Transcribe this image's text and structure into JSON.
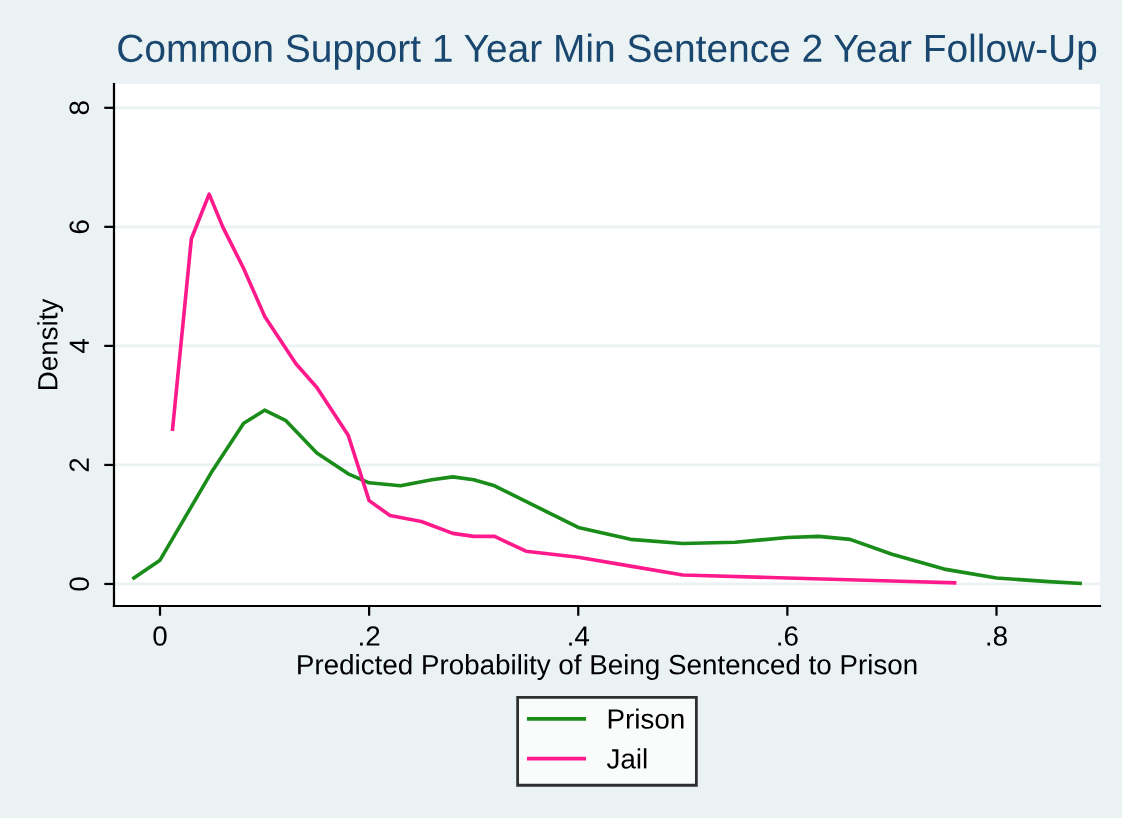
{
  "chart_data": {
    "type": "line",
    "title": "Common Support 1 Year Min Sentence 2 Year Follow-Up",
    "xlabel": "Predicted Probability of Being Sentenced to Prison",
    "ylabel": "Density",
    "xlim": [
      -0.044,
      0.899
    ],
    "ylim": [
      -0.37,
      8.4
    ],
    "xticks": [
      {
        "value": 0,
        "label": "0"
      },
      {
        "value": 0.2,
        "label": ".2"
      },
      {
        "value": 0.4,
        "label": ".4"
      },
      {
        "value": 0.6,
        "label": ".6"
      },
      {
        "value": 0.8,
        "label": ".8"
      }
    ],
    "yticks": [
      0,
      2,
      4,
      6,
      8
    ],
    "grid": "y",
    "legend": "bottom",
    "marker": "none",
    "line_style": "solid",
    "series": [
      {
        "name": "Prison",
        "color": "#1a8c1a",
        "x": [
          -0.025,
          0,
          0.03,
          0.05,
          0.08,
          0.1,
          0.12,
          0.15,
          0.18,
          0.2,
          0.23,
          0.26,
          0.28,
          0.3,
          0.32,
          0.36,
          0.4,
          0.45,
          0.5,
          0.55,
          0.6,
          0.63,
          0.66,
          0.7,
          0.75,
          0.8,
          0.85,
          0.88
        ],
        "values": [
          0.1,
          0.4,
          1.3,
          1.9,
          2.7,
          2.92,
          2.75,
          2.2,
          1.85,
          1.7,
          1.65,
          1.75,
          1.8,
          1.75,
          1.65,
          1.3,
          0.95,
          0.75,
          0.68,
          0.7,
          0.78,
          0.8,
          0.75,
          0.5,
          0.25,
          0.1,
          0.04,
          0.01
        ]
      },
      {
        "name": "Jail",
        "color": "#ff1a8c",
        "x": [
          0.012,
          0.03,
          0.047,
          0.06,
          0.08,
          0.1,
          0.13,
          0.15,
          0.18,
          0.2,
          0.22,
          0.25,
          0.28,
          0.3,
          0.32,
          0.35,
          0.4,
          0.45,
          0.5,
          0.6,
          0.7,
          0.76
        ],
        "values": [
          2.6,
          5.8,
          6.55,
          6.0,
          5.3,
          4.5,
          3.7,
          3.3,
          2.5,
          1.4,
          1.15,
          1.05,
          0.85,
          0.8,
          0.8,
          0.55,
          0.45,
          0.3,
          0.15,
          0.1,
          0.05,
          0.02
        ]
      }
    ]
  }
}
